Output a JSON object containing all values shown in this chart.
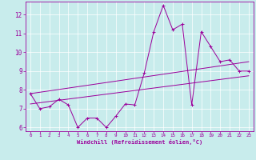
{
  "xlabel": "Windchill (Refroidissement éolien,°C)",
  "bg_color": "#c8ecec",
  "line_color": "#9b009b",
  "grid_color": "#ffffff",
  "xlim": [
    -0.5,
    23.5
  ],
  "ylim": [
    5.8,
    12.7
  ],
  "xticks": [
    0,
    1,
    2,
    3,
    4,
    5,
    6,
    7,
    8,
    9,
    10,
    11,
    12,
    13,
    14,
    15,
    16,
    17,
    18,
    19,
    20,
    21,
    22,
    23
  ],
  "yticks": [
    6,
    7,
    8,
    9,
    10,
    11,
    12
  ],
  "series1_x": [
    0,
    1,
    2,
    3,
    4,
    5,
    6,
    7,
    8,
    9,
    10,
    11,
    12,
    13,
    14,
    15,
    16,
    17,
    18,
    19,
    20,
    21,
    22,
    23
  ],
  "series1_y": [
    7.8,
    7.0,
    7.1,
    7.5,
    7.2,
    6.0,
    6.5,
    6.5,
    6.0,
    6.6,
    7.25,
    7.2,
    8.9,
    11.1,
    12.5,
    11.2,
    11.5,
    7.2,
    11.1,
    10.3,
    9.5,
    9.6,
    9.0,
    9.0
  ],
  "trend1_x": [
    0,
    23
  ],
  "trend1_y": [
    7.25,
    8.75
  ],
  "trend2_x": [
    0,
    23
  ],
  "trend2_y": [
    7.8,
    9.5
  ]
}
